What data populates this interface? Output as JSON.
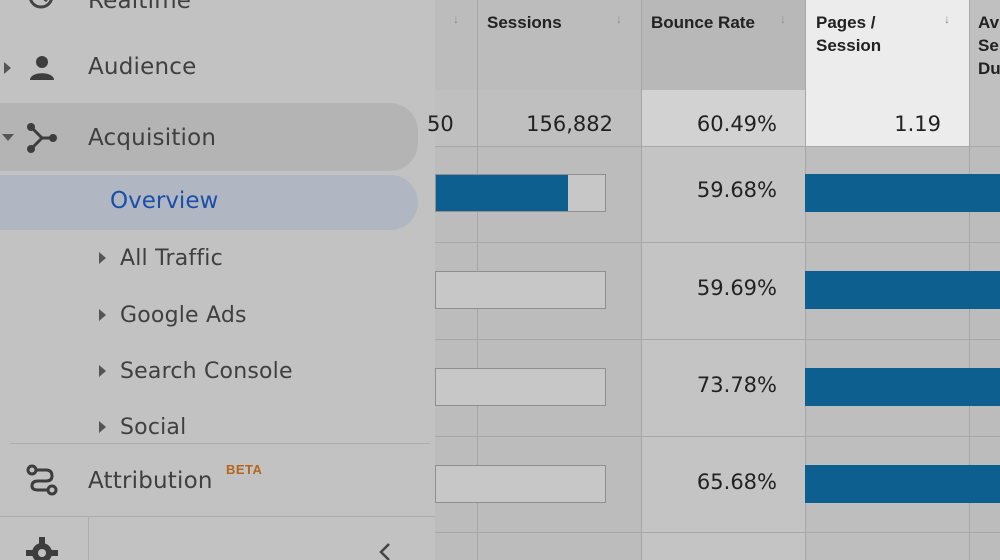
{
  "sidebar": {
    "realtime": {
      "label": "Realtime"
    },
    "audience": {
      "label": "Audience"
    },
    "acquisition": {
      "label": "Acquisition"
    },
    "overview": {
      "label": "Overview"
    },
    "sub_items": [
      {
        "label": "All Traffic"
      },
      {
        "label": "Google Ads"
      },
      {
        "label": "Search Console"
      },
      {
        "label": "Social"
      }
    ],
    "attribution": {
      "label": "Attribution",
      "badge": "BETA"
    }
  },
  "table": {
    "headers": {
      "sessions": "Sessions",
      "bounce_rate": "Bounce Rate",
      "pages_session_l1": "Pages /",
      "pages_session_l2": "Session",
      "avg_l1": "Av",
      "avg_l2": "Se",
      "avg_l3": "Du"
    },
    "totals": {
      "partial": "50",
      "sessions": "156,882",
      "bounce_rate": "60.49%",
      "pages_session": "1.19"
    },
    "rows": [
      {
        "bounce_rate": "59.68%",
        "sessions_fill": 0.78
      },
      {
        "bounce_rate": "59.69%",
        "sessions_fill": 0
      },
      {
        "bounce_rate": "73.78%",
        "sessions_fill": 0
      },
      {
        "bounce_rate": "65.68%",
        "sessions_fill": 0
      }
    ]
  },
  "colors": {
    "accent_blue": "#0d5f8f",
    "beta": "#b5651d",
    "overview_text": "#1a4fa8"
  }
}
